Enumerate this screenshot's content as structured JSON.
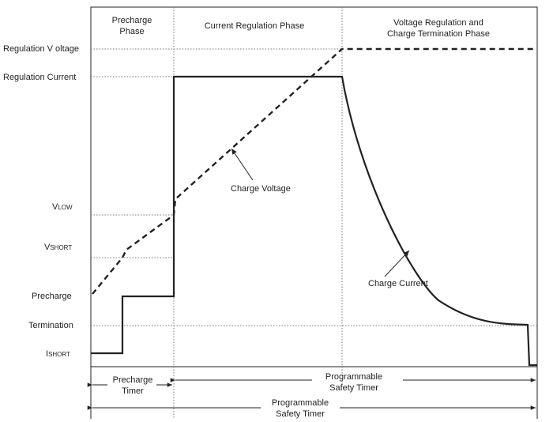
{
  "phases": {
    "precharge": [
      "Precharge",
      "Phase"
    ],
    "current_regulation": "Current Regulation Phase",
    "voltage_regulation": [
      "Voltage Regulation and",
      "Charge Termination Phase"
    ]
  },
  "y_labels": {
    "regulation_voltage": "Regulation V oltage",
    "regulation_current": "Regulation Current",
    "v_low": {
      "main": "V",
      "sub": "LOW"
    },
    "v_short": {
      "main": "V",
      "sub": "SHORT"
    },
    "precharge": "Precharge",
    "termination": "Termination",
    "i_short": {
      "main": "I",
      "sub": "SHORT"
    }
  },
  "annotations": {
    "charge_voltage": "Charge Voltage",
    "charge_current": "Charge Current"
  },
  "timers": {
    "precharge_timer": [
      "Precharge",
      "Timer"
    ],
    "safety_timer_1": [
      "Programmable",
      "Safety Timer"
    ],
    "safety_timer_2": [
      "Programmable",
      "Safety Timer"
    ]
  },
  "colors": {
    "line": "#222222",
    "dotted": "#777777"
  }
}
